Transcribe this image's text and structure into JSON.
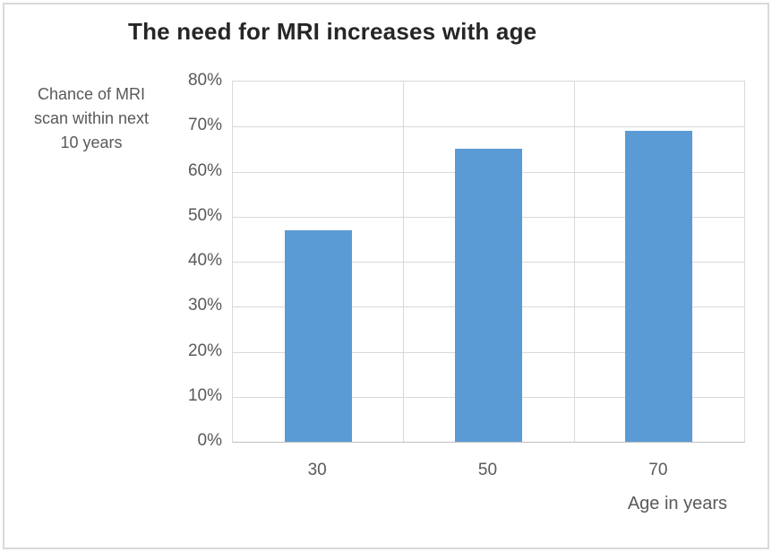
{
  "chart_data": {
    "type": "bar",
    "title": "The need for MRI increases with age",
    "ylabel": "Chance of MRI\nscan within next\n10 years",
    "xlabel": "Age in years",
    "categories": [
      "30",
      "50",
      "70"
    ],
    "values": [
      47,
      65,
      69
    ],
    "ylim": [
      0,
      80
    ],
    "ytick_step": 10,
    "yticks": [
      "0%",
      "10%",
      "20%",
      "30%",
      "40%",
      "50%",
      "60%",
      "70%",
      "80%"
    ],
    "grid": true,
    "legend": "none",
    "colors": {
      "bar": "#5B9BD5",
      "gridline": "#D9D9D9",
      "axis_line": "#BFBFBF",
      "axis_text": "#595959",
      "title_text": "#262626",
      "frame_border": "#D9D9D9",
      "background": "#FFFFFF"
    }
  }
}
